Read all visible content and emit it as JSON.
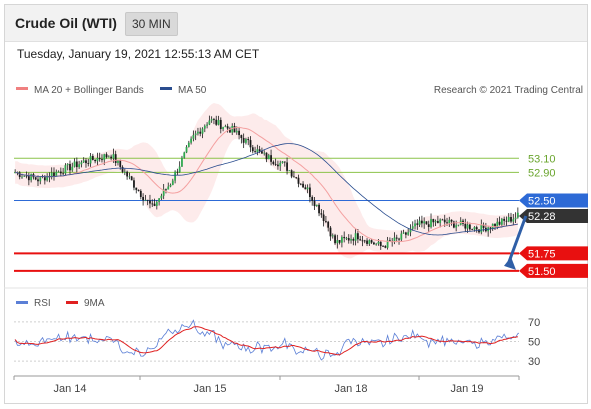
{
  "header": {
    "title": "Crude Oil (WTI)",
    "interval": "30 MIN"
  },
  "datetime": "Tuesday, January 19, 2021 12:55:13 AM CET",
  "legend": {
    "bollinger": "MA 20 + Bollinger Bands",
    "ma50": "MA 50",
    "credit": "Research © 2021 Trading Central",
    "rsi": "RSI",
    "rsi9ma": "9MA"
  },
  "colors": {
    "bollinger": "#f08080",
    "ma50": "#2a4d8f",
    "rsi": "#5b7fd6",
    "rsi9ma": "#e02020",
    "resistance_green": "#8bc34a",
    "level_blue": "#2d6ad6",
    "level_red": "#e81010",
    "last_price": "#333333"
  },
  "chart_data": [
    {
      "type": "candlestick",
      "x": [
        "Jan 14",
        "Jan 15",
        "Jan 18",
        "Jan 19"
      ],
      "ylim": [
        51.3,
        53.9
      ],
      "levels": [
        {
          "value": 53.1,
          "label": "53.10",
          "color": "#8bc34a"
        },
        {
          "value": 52.9,
          "label": "52.90",
          "color": "#8bc34a"
        },
        {
          "value": 52.5,
          "label": "52.50",
          "color": "#2d6ad6"
        },
        {
          "value": 51.75,
          "label": "51.75",
          "color": "#e81010"
        },
        {
          "value": 51.5,
          "label": "51.50",
          "color": "#e81010"
        }
      ],
      "last_price": {
        "value": 52.28,
        "label": "52.28"
      },
      "forecast_arrow": {
        "from": 52.28,
        "to": 51.5,
        "direction": "down"
      },
      "series": [
        {
          "name": "MA 20 + Bollinger Bands"
        },
        {
          "name": "MA 50"
        }
      ]
    },
    {
      "type": "line",
      "y_ticks": [
        "70",
        "50",
        "30"
      ],
      "ylim": [
        20,
        80
      ],
      "series": [
        {
          "name": "RSI"
        },
        {
          "name": "9MA"
        }
      ]
    }
  ]
}
